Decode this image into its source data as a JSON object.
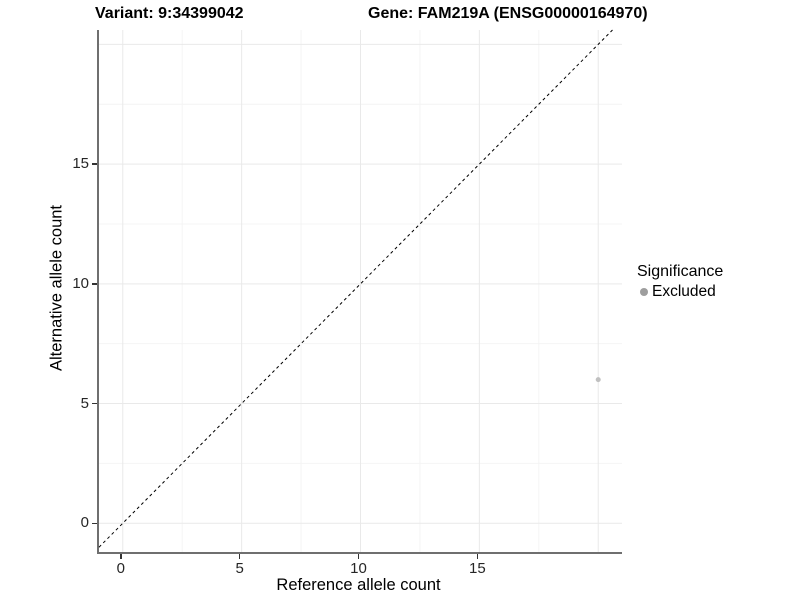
{
  "titles": {
    "variant": "Variant: 9:34399042",
    "gene": "Gene: FAM219A (ENSG00000164970)"
  },
  "axes": {
    "x": {
      "title": "Reference allele count",
      "tick_labels": [
        "0",
        "5",
        "10",
        "15"
      ]
    },
    "y": {
      "title": "Alternative allele count",
      "tick_labels": [
        "0",
        "5",
        "10",
        "15"
      ]
    }
  },
  "legend": {
    "title": "Significance",
    "items": [
      {
        "label": "Excluded",
        "color": "#9e9e9e"
      }
    ]
  },
  "chart_data": {
    "type": "scatter",
    "title": "Variant: 9:34399042 | Gene: FAM219A (ENSG00000164970)",
    "xlabel": "Reference allele count",
    "ylabel": "Alternative allele count",
    "xlim": [
      -1,
      21
    ],
    "ylim": [
      -1.2,
      20.6
    ],
    "x_ticks": [
      0,
      5,
      10,
      15
    ],
    "y_ticks": [
      0,
      5,
      10,
      15
    ],
    "grid_major": [
      0,
      5,
      10,
      15,
      20
    ],
    "grid_minor": [
      2.5,
      7.5,
      12.5,
      17.5
    ],
    "grid_on": true,
    "legend_position": "right",
    "series": [
      {
        "name": "Excluded",
        "color": "#c0c0c0",
        "point_radius": 2.5,
        "points": [
          {
            "x": 20,
            "y": 6
          }
        ]
      }
    ],
    "reference_line": {
      "equation": "y = x",
      "style": "dashed",
      "color": "#000000",
      "dash": "3,3"
    },
    "colors": {
      "grid_major": "#e9e9e9",
      "grid_minor": "#f4f4f4",
      "axis_line": "#6f6f6f",
      "tick_mark": "#333333",
      "tick_text": "#262626"
    }
  }
}
